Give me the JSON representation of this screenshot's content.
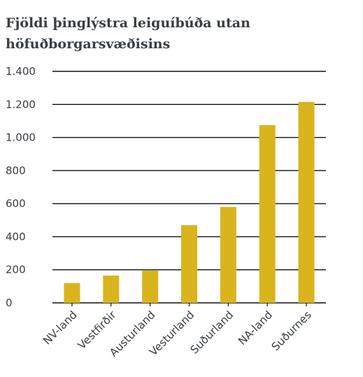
{
  "chart_data": {
    "type": "bar",
    "title": "Fjöldi þinglýstra leiguíbúða utan höfuðborgarsvæðisins",
    "xlabel": "",
    "ylabel": "",
    "categories": [
      "NV-land",
      "Vestfirðir",
      "Austurland",
      "Vesturland",
      "Suðurland",
      "NA-land",
      "Suðurnes"
    ],
    "values": [
      120,
      165,
      195,
      470,
      580,
      1075,
      1215
    ],
    "ylim": [
      0,
      1400
    ],
    "yticks": [
      0,
      200,
      400,
      600,
      800,
      1000,
      1200,
      1400
    ],
    "ytick_labels": [
      "0",
      "200",
      "400",
      "600",
      "800",
      "1.000",
      "1.200",
      "1.400"
    ],
    "grid": true,
    "legend": "none",
    "bar_color": "#d9b41c",
    "grid_color": "#111111",
    "text_color": "#3a3f44"
  }
}
